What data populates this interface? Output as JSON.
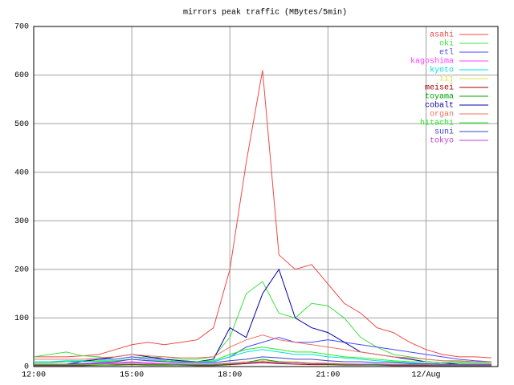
{
  "chart_data": {
    "type": "line",
    "title": "mirrors peak traffic (MBytes/5min)",
    "x": [
      12,
      12.5,
      13,
      13.5,
      14,
      14.5,
      15,
      15.5,
      16,
      16.5,
      17,
      17.5,
      18,
      18.5,
      19,
      19.5,
      20,
      20.5,
      21,
      21.5,
      22,
      22.5,
      23,
      23.5,
      24,
      24.5,
      25,
      25.5,
      26
    ],
    "xlim": [
      12,
      26.2
    ],
    "xticks": [
      {
        "value": 12,
        "label": "12:00"
      },
      {
        "value": 15,
        "label": "15:00"
      },
      {
        "value": 18,
        "label": "18:00"
      },
      {
        "value": 21,
        "label": "21:00"
      },
      {
        "value": 24,
        "label": "12/Aug"
      }
    ],
    "ylim": [
      0,
      700
    ],
    "yticks": [
      0,
      100,
      200,
      300,
      400,
      500,
      600,
      700
    ],
    "grid": true,
    "legend": "top-right",
    "series": [
      {
        "name": "asahi",
        "color": "#f04848",
        "values": [
          20,
          20,
          20,
          22,
          25,
          35,
          45,
          50,
          45,
          50,
          55,
          80,
          200,
          420,
          610,
          230,
          200,
          210,
          170,
          130,
          110,
          80,
          70,
          50,
          35,
          25,
          20,
          20,
          18
        ]
      },
      {
        "name": "oki",
        "color": "#40e040",
        "values": [
          20,
          25,
          30,
          22,
          20,
          15,
          20,
          18,
          20,
          15,
          15,
          20,
          60,
          150,
          175,
          110,
          100,
          130,
          125,
          100,
          60,
          40,
          25,
          20,
          15,
          12,
          10,
          10,
          10
        ]
      },
      {
        "name": "etl",
        "color": "#4848ff",
        "values": [
          10,
          10,
          10,
          12,
          15,
          15,
          20,
          15,
          15,
          12,
          10,
          10,
          20,
          40,
          50,
          60,
          50,
          50,
          55,
          50,
          45,
          40,
          35,
          30,
          25,
          20,
          15,
          12,
          10
        ]
      },
      {
        "name": "kagoshima",
        "color": "#ff40ff",
        "values": [
          5,
          5,
          5,
          6,
          6,
          8,
          10,
          8,
          6,
          5,
          5,
          5,
          8,
          10,
          12,
          10,
          8,
          8,
          6,
          5,
          5,
          5,
          4,
          4,
          3,
          3,
          3,
          3,
          3
        ]
      },
      {
        "name": "kyoto",
        "color": "#00e0e0",
        "values": [
          10,
          10,
          12,
          12,
          10,
          12,
          15,
          12,
          12,
          10,
          10,
          10,
          20,
          30,
          35,
          30,
          25,
          25,
          20,
          18,
          15,
          12,
          10,
          8,
          6,
          5,
          5,
          5,
          5
        ]
      },
      {
        "name": "iij",
        "color": "#e0e040",
        "values": [
          5,
          5,
          5,
          5,
          5,
          6,
          8,
          6,
          5,
          5,
          5,
          5,
          8,
          10,
          12,
          10,
          10,
          8,
          8,
          6,
          5,
          5,
          5,
          4,
          4,
          4,
          3,
          3,
          3
        ]
      },
      {
        "name": "meisei",
        "color": "#a00000",
        "values": [
          2,
          2,
          2,
          2,
          3,
          3,
          4,
          3,
          3,
          3,
          2,
          2,
          4,
          6,
          8,
          6,
          5,
          4,
          4,
          3,
          3,
          3,
          2,
          2,
          2,
          2,
          2,
          2,
          2
        ]
      },
      {
        "name": "toyama",
        "color": "#00a000",
        "values": [
          3,
          3,
          3,
          3,
          3,
          4,
          5,
          4,
          4,
          3,
          3,
          3,
          5,
          8,
          15,
          10,
          8,
          6,
          5,
          4,
          4,
          3,
          3,
          3,
          3,
          2,
          2,
          2,
          2
        ]
      },
      {
        "name": "cobalt",
        "color": "#0000a8",
        "values": [
          5,
          5,
          5,
          10,
          15,
          20,
          25,
          20,
          15,
          12,
          10,
          15,
          80,
          60,
          150,
          200,
          100,
          80,
          70,
          50,
          30,
          25,
          20,
          15,
          10,
          8,
          5,
          5,
          5
        ]
      },
      {
        "name": "organ",
        "color": "#f07060",
        "values": [
          15,
          15,
          15,
          15,
          18,
          20,
          25,
          22,
          20,
          18,
          18,
          20,
          40,
          55,
          65,
          55,
          50,
          45,
          40,
          35,
          30,
          25,
          20,
          18,
          15,
          12,
          12,
          10,
          10
        ]
      },
      {
        "name": "hitachi",
        "color": "#20f020",
        "values": [
          8,
          8,
          10,
          10,
          12,
          12,
          15,
          12,
          12,
          10,
          10,
          12,
          25,
          35,
          40,
          35,
          30,
          30,
          25,
          20,
          18,
          15,
          12,
          10,
          10,
          8,
          8,
          8,
          8
        ]
      },
      {
        "name": "suni",
        "color": "#4040c8",
        "values": [
          5,
          5,
          5,
          6,
          8,
          10,
          15,
          12,
          10,
          8,
          8,
          8,
          12,
          15,
          20,
          18,
          15,
          15,
          12,
          10,
          10,
          8,
          8,
          6,
          6,
          5,
          5,
          5,
          5
        ]
      },
      {
        "name": "tokyo",
        "color": "#c040d0",
        "values": [
          5,
          5,
          5,
          5,
          6,
          6,
          8,
          6,
          6,
          5,
          5,
          5,
          6,
          8,
          10,
          8,
          8,
          6,
          6,
          5,
          5,
          5,
          4,
          4,
          4,
          3,
          3,
          3,
          3
        ]
      }
    ]
  }
}
